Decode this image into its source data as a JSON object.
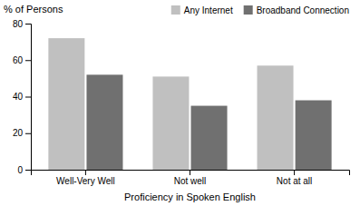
{
  "chart_data": {
    "type": "bar",
    "xlabel": "Proficiency in Spoken English",
    "ylabel": "% of Persons",
    "categories": [
      "Well-Very Well",
      "Not well",
      "Not at all"
    ],
    "series": [
      {
        "name": "Any Internet",
        "color": "#c0c0c0",
        "values": [
          72,
          51,
          57
        ]
      },
      {
        "name": "Broadband Connection",
        "color": "#707070",
        "values": [
          52,
          35,
          38
        ]
      }
    ],
    "ylim": [
      0,
      80
    ],
    "yticks": [
      0,
      20,
      40,
      60,
      80
    ],
    "grid": false,
    "legend": "upper right"
  }
}
